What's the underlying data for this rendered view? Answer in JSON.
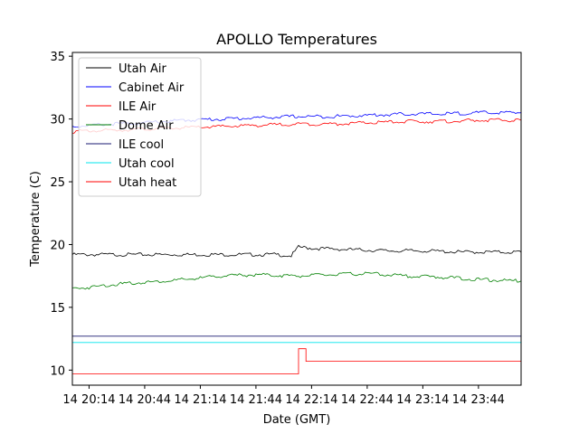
{
  "chart_data": {
    "type": "line",
    "title": "APOLLO Temperatures",
    "xlabel": "Date (GMT)",
    "ylabel": "Temperature (C)",
    "xlim": [
      0,
      242
    ],
    "ylim": [
      8.8,
      35.3
    ],
    "x_units": "minutes after 14 20:05 GMT",
    "yticks": [
      10,
      15,
      20,
      25,
      30,
      35
    ],
    "xticks": [
      {
        "x": 9,
        "label": "14 20:14"
      },
      {
        "x": 39,
        "label": "14 20:44"
      },
      {
        "x": 69,
        "label": "14 21:14"
      },
      {
        "x": 99,
        "label": "14 21:44"
      },
      {
        "x": 129,
        "label": "14 22:14"
      },
      {
        "x": 159,
        "label": "14 22:44"
      },
      {
        "x": 189,
        "label": "14 23:14"
      },
      {
        "x": 219,
        "label": "14 23:44"
      }
    ],
    "legend_position": "top-left",
    "series": [
      {
        "name": "Utah Air",
        "color": "#000000",
        "x": [
          0,
          20,
          40,
          60,
          80,
          100,
          110,
          118,
          122,
          130,
          150,
          170,
          190,
          210,
          230,
          242
        ],
        "y": [
          19.2,
          19.2,
          19.2,
          19.2,
          19.2,
          19.2,
          19.2,
          19.1,
          19.8,
          19.7,
          19.6,
          19.5,
          19.5,
          19.4,
          19.4,
          19.4
        ]
      },
      {
        "name": "Cabinet Air",
        "color": "#0000ff",
        "x": [
          0,
          20,
          40,
          60,
          80,
          100,
          120,
          140,
          160,
          180,
          200,
          220,
          242
        ],
        "y": [
          29.4,
          29.6,
          29.7,
          29.9,
          30.0,
          30.1,
          30.2,
          30.2,
          30.3,
          30.4,
          30.4,
          30.5,
          30.5
        ]
      },
      {
        "name": "ILE Air",
        "color": "#ff0000",
        "x": [
          0,
          20,
          40,
          60,
          80,
          100,
          120,
          140,
          160,
          180,
          200,
          220,
          242
        ],
        "y": [
          29.0,
          29.1,
          29.2,
          29.3,
          29.4,
          29.5,
          29.6,
          29.6,
          29.7,
          29.8,
          29.8,
          29.9,
          29.9
        ]
      },
      {
        "name": "Dome Air",
        "color": "#008000",
        "x": [
          0,
          10,
          20,
          40,
          60,
          80,
          100,
          120,
          140,
          160,
          180,
          200,
          220,
          242
        ],
        "y": [
          16.5,
          16.6,
          16.8,
          17.0,
          17.2,
          17.5,
          17.6,
          17.5,
          17.6,
          17.7,
          17.5,
          17.4,
          17.2,
          17.1
        ]
      },
      {
        "name": "ILE cool",
        "color": "#191970",
        "x": [
          0,
          242
        ],
        "y": [
          12.7,
          12.7
        ]
      },
      {
        "name": "Utah cool",
        "color": "#00e5ee",
        "x": [
          0,
          242
        ],
        "y": [
          12.2,
          12.2
        ]
      },
      {
        "name": "Utah heat",
        "color": "#ff0000",
        "x": [
          0,
          122,
          122,
          126,
          126,
          242
        ],
        "y": [
          9.7,
          9.7,
          11.7,
          11.7,
          10.7,
          10.7
        ]
      }
    ]
  }
}
